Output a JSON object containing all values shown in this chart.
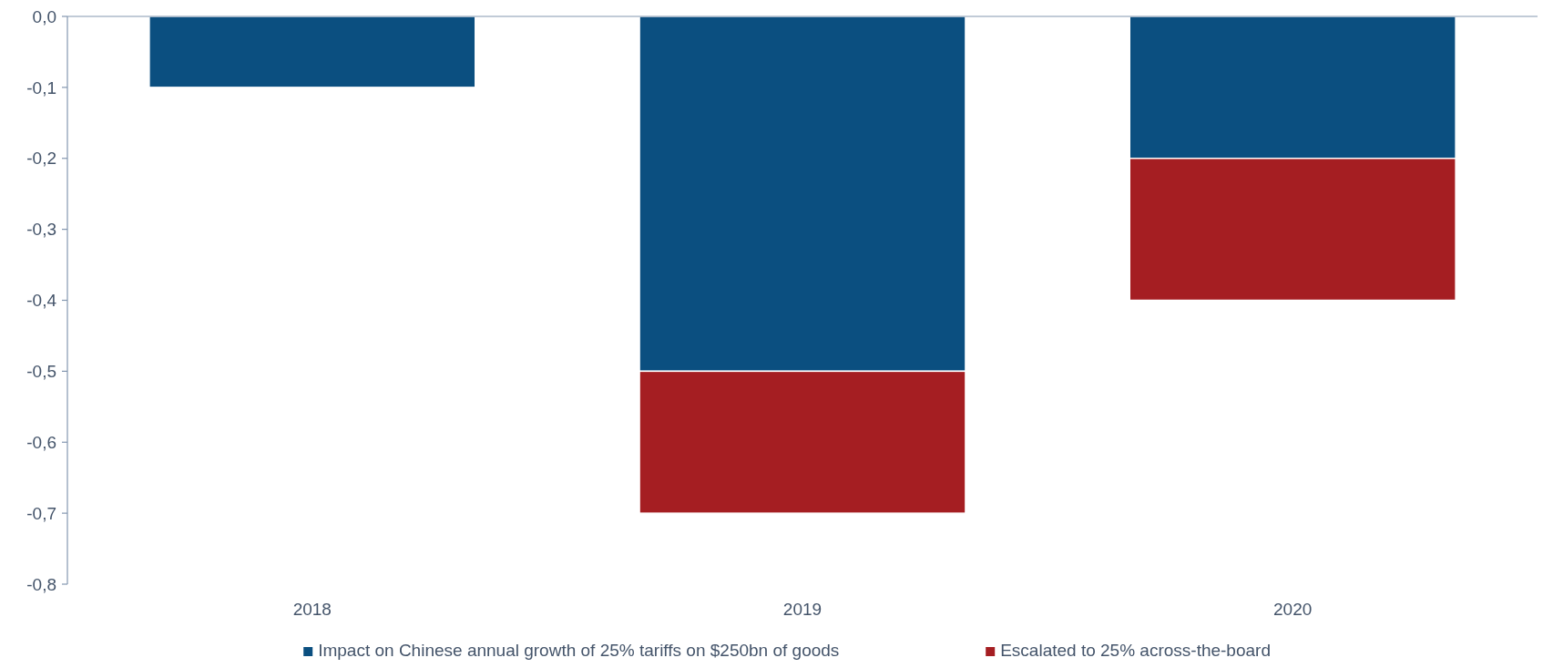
{
  "chart_data": {
    "type": "bar",
    "stacked": true,
    "categories": [
      "2018",
      "2019",
      "2020"
    ],
    "series": [
      {
        "name": "Impact on Chinese annual growth of 25% tariffs on $250bn of goods",
        "color": "#0b4f80",
        "values": [
          -0.1,
          -0.5,
          -0.2
        ]
      },
      {
        "name": "Escalated to 25% across-the-board",
        "color": "#a51e22",
        "values": [
          null,
          -0.2,
          -0.2
        ]
      }
    ],
    "ylim": [
      -0.8,
      0
    ],
    "yticks": [
      {
        "value": 0,
        "label": "0,0"
      },
      {
        "value": -0.1,
        "label": "-0,1"
      },
      {
        "value": -0.2,
        "label": "-0,2"
      },
      {
        "value": -0.3,
        "label": "-0,3"
      },
      {
        "value": -0.4,
        "label": "-0,4"
      },
      {
        "value": -0.5,
        "label": "-0,5"
      },
      {
        "value": -0.6,
        "label": "-0,6"
      },
      {
        "value": -0.7,
        "label": "-0,7"
      },
      {
        "value": -0.8,
        "label": "-0,8"
      }
    ],
    "grid": false,
    "legend": "bottom"
  }
}
